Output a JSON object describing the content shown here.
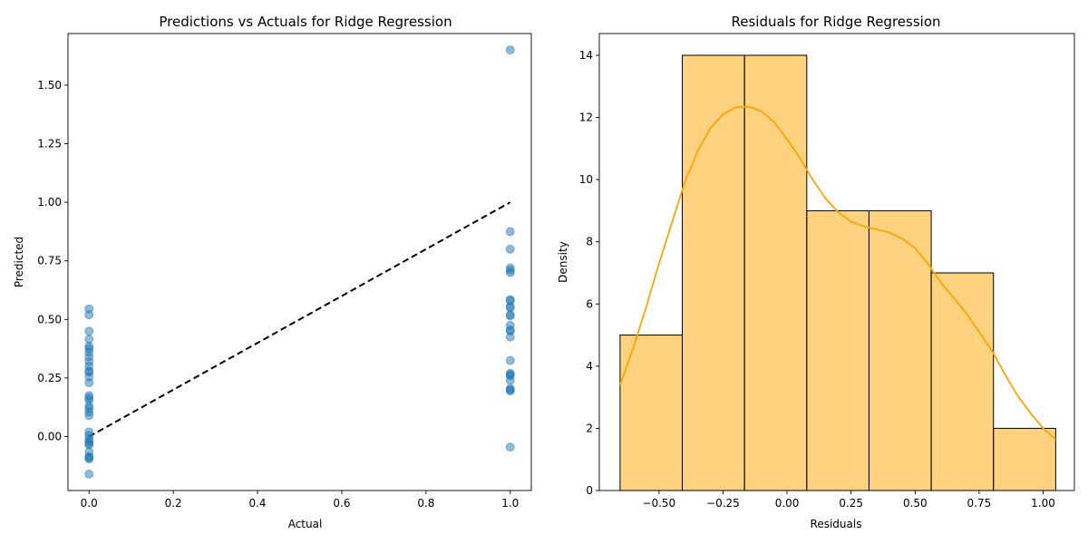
{
  "chart_data": [
    {
      "type": "scatter",
      "title": "Predictions vs Actuals for Ridge Regression",
      "xlabel": "Actual",
      "ylabel": "Predicted",
      "xlim": [
        -0.05,
        1.05
      ],
      "ylim": [
        -0.23,
        1.72
      ],
      "xticks": [
        "0.0",
        "0.2",
        "0.4",
        "0.6",
        "0.8",
        "1.0"
      ],
      "yticks": [
        "0.00",
        "0.25",
        "0.50",
        "0.75",
        "1.00",
        "1.25",
        "1.50"
      ],
      "point_color": "#1f77b4",
      "reference_line": {
        "x": [
          0,
          1
        ],
        "y": [
          0,
          1
        ],
        "color": "#000000",
        "style": "dashed"
      },
      "series": [
        {
          "x": [
            0,
            0,
            0,
            0,
            0,
            0,
            0,
            0,
            0,
            0,
            0,
            0,
            0,
            0,
            0,
            0,
            0,
            0,
            0,
            0,
            0,
            0,
            0,
            0,
            0,
            0,
            0,
            0,
            0,
            0,
            0,
            0,
            1,
            1,
            1,
            1,
            1,
            1,
            1,
            1,
            1,
            1,
            1,
            1,
            1,
            1,
            1,
            1,
            1,
            1,
            1,
            1,
            1,
            1,
            1,
            1,
            1
          ],
          "y": [
            0.545,
            0.52,
            0.45,
            0.415,
            0.385,
            0.375,
            0.36,
            0.34,
            0.32,
            0.3,
            0.28,
            0.275,
            0.255,
            0.23,
            0.175,
            0.165,
            0.155,
            0.13,
            0.12,
            0.105,
            0.09,
            0.02,
            0.005,
            -0.01,
            -0.02,
            -0.03,
            -0.035,
            -0.065,
            -0.085,
            -0.09,
            -0.095,
            -0.16,
            1.65,
            0.875,
            0.8,
            0.72,
            0.71,
            0.7,
            0.585,
            0.58,
            0.555,
            0.55,
            0.52,
            0.515,
            0.475,
            0.455,
            0.45,
            0.425,
            0.325,
            0.27,
            0.265,
            0.26,
            0.24,
            0.205,
            0.2,
            0.195,
            -0.045
          ]
        }
      ]
    },
    {
      "type": "histogram",
      "title": "Residuals for Ridge Regression",
      "xlabel": "Residuals",
      "ylabel": "Density",
      "xlim": [
        -0.733,
        1.122
      ],
      "ylim": [
        0,
        14.7
      ],
      "xticks": [
        "−0.50",
        "−0.25",
        "0.00",
        "0.25",
        "0.50",
        "0.75",
        "1.00"
      ],
      "yticks": [
        "0",
        "2",
        "4",
        "6",
        "8",
        "10",
        "12",
        "14"
      ],
      "bar_color": "#ffa500",
      "bins": [
        {
          "start": -0.652,
          "end": -0.409,
          "count": 5
        },
        {
          "start": -0.409,
          "end": -0.166,
          "count": 14
        },
        {
          "start": -0.166,
          "end": 0.077,
          "count": 14
        },
        {
          "start": 0.077,
          "end": 0.32,
          "count": 9
        },
        {
          "start": 0.32,
          "end": 0.563,
          "count": 9
        },
        {
          "start": 0.563,
          "end": 0.806,
          "count": 7
        },
        {
          "start": 0.806,
          "end": 1.049,
          "count": 2
        }
      ],
      "kde": {
        "color": "#ffa500",
        "x": [
          -0.652,
          -0.6,
          -0.55,
          -0.5,
          -0.45,
          -0.4,
          -0.35,
          -0.3,
          -0.25,
          -0.2,
          -0.15,
          -0.1,
          -0.05,
          0.0,
          0.05,
          0.1,
          0.15,
          0.2,
          0.25,
          0.3,
          0.35,
          0.4,
          0.45,
          0.5,
          0.55,
          0.6,
          0.65,
          0.7,
          0.75,
          0.8,
          0.85,
          0.9,
          0.95,
          1.0,
          1.049
        ],
        "y": [
          3.4,
          4.6,
          5.9,
          7.3,
          8.6,
          9.9,
          10.9,
          11.65,
          12.1,
          12.33,
          12.35,
          12.2,
          11.85,
          11.3,
          10.7,
          10.0,
          9.4,
          8.95,
          8.65,
          8.5,
          8.4,
          8.3,
          8.1,
          7.8,
          7.3,
          6.7,
          6.2,
          5.7,
          5.1,
          4.5,
          3.75,
          3.05,
          2.5,
          2.0,
          1.65
        ]
      }
    }
  ]
}
